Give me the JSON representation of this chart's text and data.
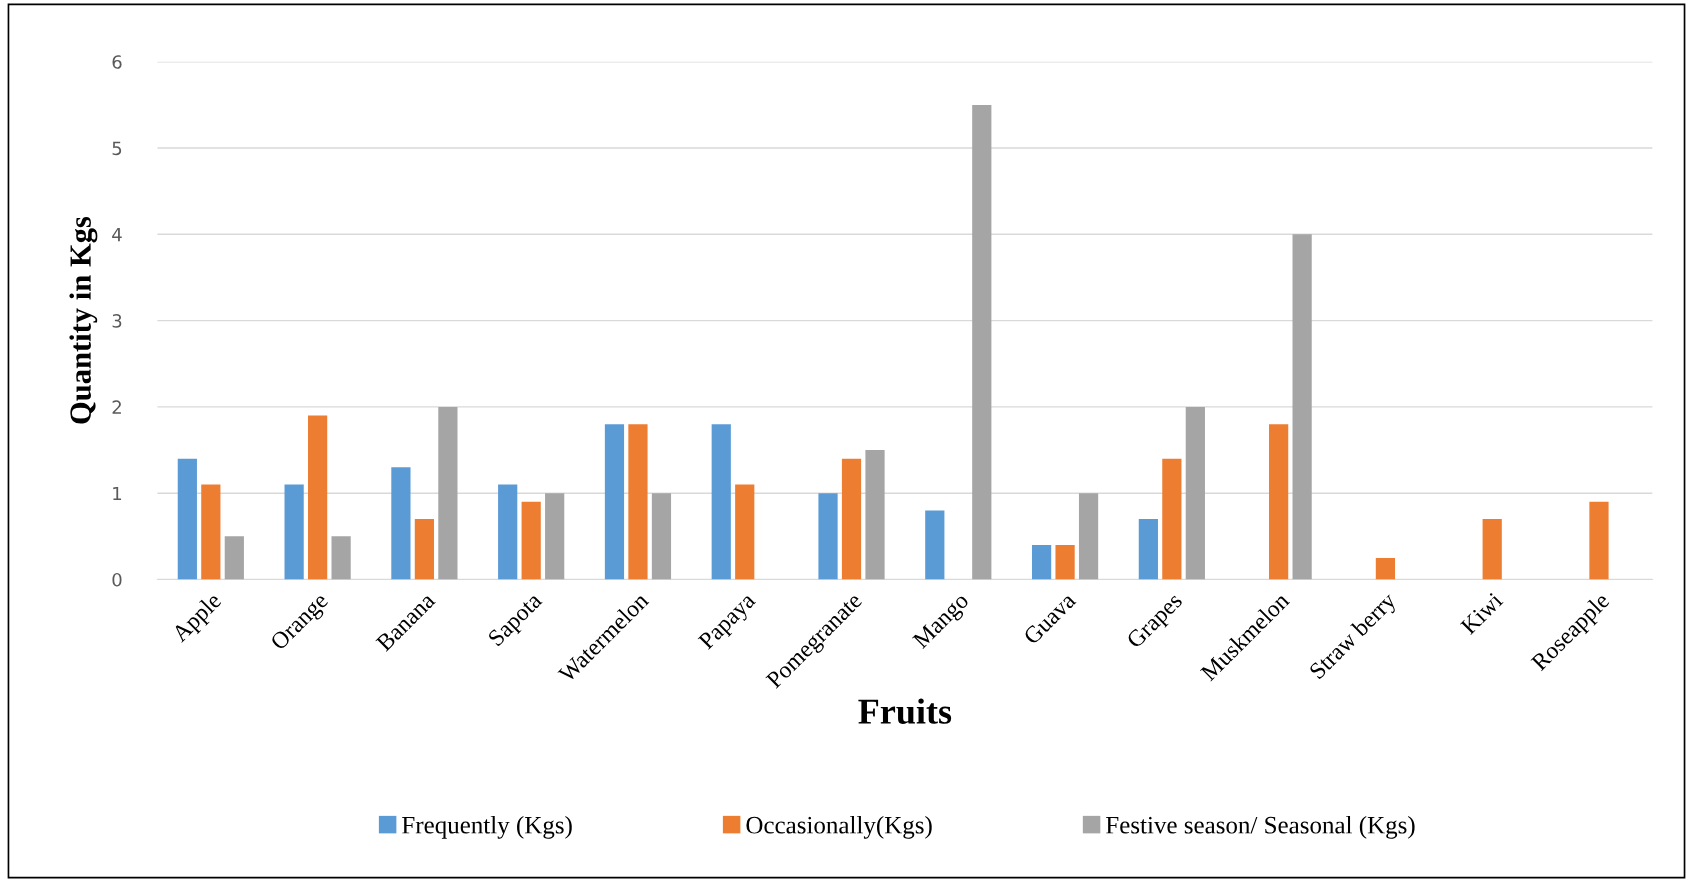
{
  "chart_data": {
    "type": "bar",
    "xlabel": "Fruits",
    "ylabel": "Quantity in Kgs",
    "categories": [
      "Apple",
      "Orange",
      "Banana",
      "Sapota",
      "Watermelon",
      "Papaya",
      "Pomegranate",
      "Mango",
      "Guava",
      "Grapes",
      "Muskmelon",
      "Straw berry",
      "Kiwi",
      "Roseapple"
    ],
    "series": [
      {
        "name": "Frequently (Kgs)",
        "color": "#5b9bd5",
        "values": [
          1.4,
          1.1,
          1.3,
          1.1,
          1.8,
          1.8,
          1.0,
          0.8,
          0.4,
          0.7,
          null,
          null,
          null,
          null
        ]
      },
      {
        "name": "Occasionally(Kgs)",
        "color": "#ed7d31",
        "values": [
          1.1,
          1.9,
          0.7,
          0.9,
          1.8,
          1.1,
          1.4,
          null,
          0.4,
          1.4,
          1.8,
          0.25,
          0.7,
          0.9
        ]
      },
      {
        "name": "Festive season/ Seasonal (Kgs)",
        "color": "#a5a5a5",
        "values": [
          0.5,
          0.5,
          2.0,
          1.0,
          1.0,
          null,
          1.5,
          5.5,
          1.0,
          2.0,
          4.0,
          null,
          null,
          null
        ]
      }
    ],
    "ylim": [
      0,
      6
    ],
    "yticks": [
      0,
      1,
      2,
      3,
      4,
      5,
      6
    ],
    "grid": "y",
    "legend": "bottom"
  }
}
